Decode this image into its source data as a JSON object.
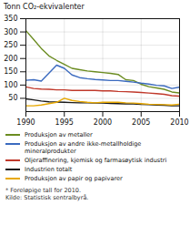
{
  "chart_data": {
    "type": "line",
    "ylabel": "Tonn CO₂-ekvivalenter",
    "x": [
      1990,
      1991,
      1992,
      1993,
      1994,
      1995,
      1996,
      1997,
      1998,
      1999,
      2000,
      2001,
      2002,
      2003,
      2004,
      2005,
      2006,
      2007,
      2008,
      2009,
      2010
    ],
    "series": [
      {
        "name": "Produksjon av metaller",
        "color": "#6b8c21",
        "values": [
          305,
          272,
          238,
          210,
          193,
          178,
          163,
          158,
          153,
          150,
          147,
          144,
          140,
          120,
          117,
          103,
          94,
          89,
          84,
          74,
          70
        ]
      },
      {
        "name": "Produksjon av andre ikke-metallholdige\nmineralprodukter",
        "color": "#3b6abf",
        "values": [
          118,
          120,
          115,
          145,
          175,
          163,
          138,
          128,
          124,
          121,
          119,
          117,
          117,
          114,
          111,
          107,
          104,
          99,
          97,
          87,
          92
        ]
      },
      {
        "name": "Oljeraffinering, kjemisk og farmasøytisk industri",
        "color": "#c0392b",
        "values": [
          93,
          87,
          85,
          84,
          82,
          82,
          80,
          80,
          80,
          80,
          78,
          78,
          76,
          75,
          74,
          72,
          70,
          68,
          65,
          60,
          58
        ]
      },
      {
        "name": "Industrien totalt",
        "color": "#1a1a1a",
        "values": [
          48,
          44,
          40,
          37,
          36,
          35,
          34,
          33,
          33,
          32,
          32,
          31,
          30,
          29,
          29,
          27,
          26,
          25,
          24,
          22,
          22
        ]
      },
      {
        "name": "Produksjon av papir og papivarer",
        "color": "#e8a800",
        "values": [
          22,
          22,
          25,
          30,
          35,
          50,
          42,
          38,
          35,
          33,
          35,
          35,
          35,
          33,
          32,
          30,
          28,
          27,
          26,
          25,
          28
        ]
      }
    ],
    "ylim": [
      0,
      350
    ],
    "yticks": [
      50,
      100,
      150,
      200,
      250,
      300,
      350
    ],
    "xlim": [
      1990,
      2010
    ],
    "xticks": [
      1990,
      1995,
      2000,
      2005,
      2010
    ],
    "grid": true,
    "legend": "bottom",
    "footnote": "* Foreløpige tall for 2010.",
    "source": "Kilde: Statistisk sentralbyrå."
  }
}
